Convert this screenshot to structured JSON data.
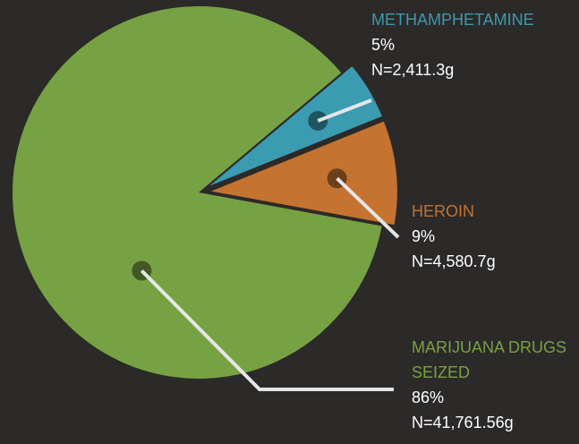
{
  "chart_data": {
    "type": "pie",
    "categories": [
      "METHAMPHETAMINE",
      "HEROIN",
      "MARIJUANA DRUGS SEIZED"
    ],
    "values": [
      5,
      9,
      86
    ],
    "value_labels": [
      "5%",
      "9%",
      "86%"
    ],
    "n_labels": [
      "N=2,411.3g",
      "N=4,580.7g",
      "N=41,761.56g"
    ],
    "colors": [
      "#3a9bb1",
      "#c47330",
      "#77a243"
    ]
  }
}
